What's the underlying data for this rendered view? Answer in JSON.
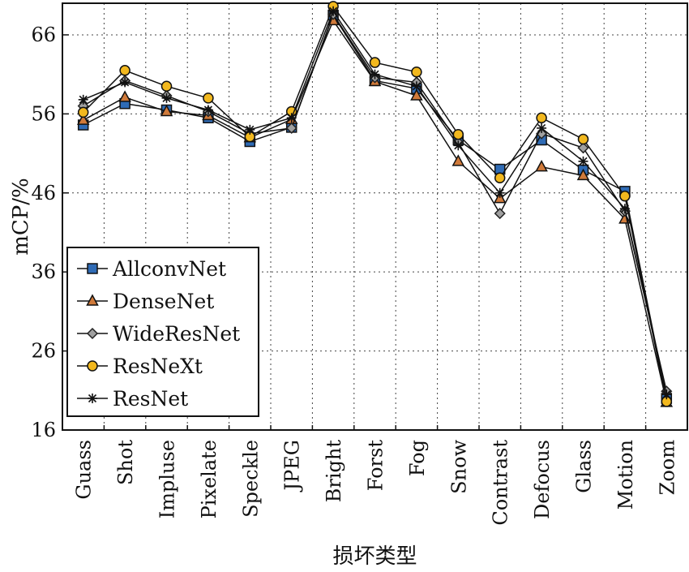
{
  "chart_data": {
    "type": "line",
    "xlabel": "损坏类型",
    "ylabel": "mCP/%",
    "ylim": [
      16,
      70
    ],
    "yticks": [
      16,
      26,
      36,
      46,
      56,
      66
    ],
    "grid": "dashed",
    "legend_position": "lower-left",
    "categories": [
      "Guass",
      "Shot",
      "Impluse",
      "Pixelate",
      "Speckle",
      "JPEG",
      "Bright",
      "Forst",
      "Fog",
      "Snow",
      "Contrast",
      "Defocus",
      "Glass",
      "Motion",
      "Zoom"
    ],
    "series": [
      {
        "name": "AllconvNet",
        "marker": "square",
        "color": "#2f6bb5",
        "values": [
          54.6,
          57.3,
          56.5,
          55.5,
          52.5,
          54.3,
          68.5,
          60.2,
          59.2,
          52.7,
          49.0,
          52.7,
          48.9,
          46.2,
          20.0
        ]
      },
      {
        "name": "DenseNet",
        "marker": "triangle",
        "color": "#d07a3a",
        "values": [
          55.2,
          58.1,
          56.3,
          55.8,
          53.0,
          55.3,
          67.8,
          60.1,
          58.3,
          50.0,
          45.3,
          49.3,
          48.2,
          42.7,
          19.5
        ]
      },
      {
        "name": "WideResNet",
        "marker": "diamond",
        "color": "#a0a0a0",
        "values": [
          57.0,
          60.2,
          58.3,
          56.3,
          53.5,
          54.2,
          68.6,
          60.6,
          60.0,
          52.4,
          43.4,
          53.5,
          51.7,
          43.7,
          20.9
        ]
      },
      {
        "name": "ResNeXt",
        "marker": "circle",
        "color": "#f2b81e",
        "values": [
          56.2,
          61.5,
          59.5,
          58.0,
          53.1,
          56.3,
          69.6,
          62.5,
          61.3,
          53.4,
          47.9,
          55.5,
          52.8,
          45.6,
          19.6
        ]
      },
      {
        "name": "ResNet",
        "marker": "asterisk",
        "color": "#111111",
        "values": [
          57.8,
          60.0,
          58.0,
          56.5,
          54.0,
          55.5,
          69.0,
          61.0,
          59.5,
          52.0,
          46.0,
          54.2,
          50.0,
          44.0,
          20.5
        ]
      }
    ]
  }
}
